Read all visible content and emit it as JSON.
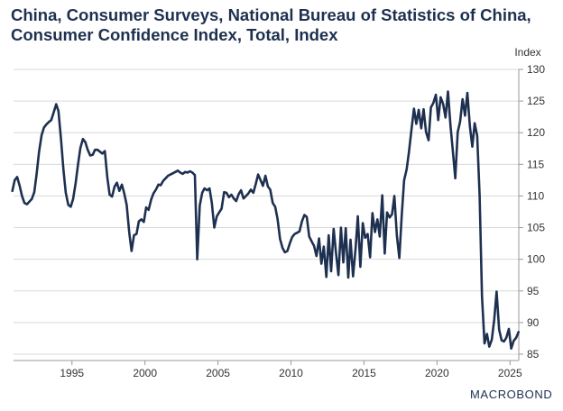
{
  "title_lines": [
    "China, Consumer Surveys, National Bureau of Statistics of China,",
    "Consumer Confidence Index, Total, Index"
  ],
  "logo": "MACROBOND",
  "colors": {
    "line": "#1e3050",
    "grid": "#d9d9d9",
    "text": "#333333"
  },
  "chart_data": {
    "type": "line",
    "title": "China, Consumer Surveys, National Bureau of Statistics of China, Consumer Confidence Index, Total, Index",
    "xlabel": "",
    "ylabel": "Index",
    "xlim": [
      1991.0,
      2025.6
    ],
    "ylim": [
      84,
      130
    ],
    "yticks": [
      85,
      90,
      95,
      100,
      105,
      110,
      115,
      120,
      125,
      130
    ],
    "xticks": [
      1995,
      2000,
      2005,
      2010,
      2015,
      2020,
      2025
    ],
    "y_axis_side": "right",
    "grid": "horizontal",
    "legend": "none",
    "series": [
      {
        "points": [
          [
            1990.92,
            110.8
          ],
          [
            1991.08,
            112.5
          ],
          [
            1991.25,
            113.0
          ],
          [
            1991.42,
            111.6
          ],
          [
            1991.58,
            110.0
          ],
          [
            1991.75,
            108.9
          ],
          [
            1991.92,
            108.7
          ],
          [
            1992.08,
            109.1
          ],
          [
            1992.25,
            109.5
          ],
          [
            1992.42,
            110.6
          ],
          [
            1992.58,
            113.5
          ],
          [
            1992.75,
            117.0
          ],
          [
            1992.92,
            119.6
          ],
          [
            1993.08,
            120.8
          ],
          [
            1993.25,
            121.3
          ],
          [
            1993.42,
            121.7
          ],
          [
            1993.58,
            122.0
          ],
          [
            1993.75,
            123.2
          ],
          [
            1993.92,
            124.5
          ],
          [
            1994.08,
            123.4
          ],
          [
            1994.25,
            119.0
          ],
          [
            1994.42,
            114.0
          ],
          [
            1994.58,
            110.5
          ],
          [
            1994.75,
            108.6
          ],
          [
            1994.92,
            108.3
          ],
          [
            1995.08,
            109.5
          ],
          [
            1995.25,
            112.0
          ],
          [
            1995.42,
            115.0
          ],
          [
            1995.58,
            117.6
          ],
          [
            1995.75,
            119.0
          ],
          [
            1995.92,
            118.5
          ],
          [
            1996.08,
            117.3
          ],
          [
            1996.25,
            116.4
          ],
          [
            1996.42,
            116.5
          ],
          [
            1996.58,
            117.3
          ],
          [
            1996.75,
            117.3
          ],
          [
            1996.92,
            117.0
          ],
          [
            1997.08,
            116.7
          ],
          [
            1997.25,
            117.1
          ],
          [
            1997.42,
            113.0
          ],
          [
            1997.58,
            110.2
          ],
          [
            1997.75,
            109.9
          ],
          [
            1997.92,
            111.5
          ],
          [
            1998.08,
            112.1
          ],
          [
            1998.25,
            110.8
          ],
          [
            1998.42,
            111.8
          ],
          [
            1998.58,
            110.4
          ],
          [
            1998.75,
            108.6
          ],
          [
            1998.92,
            104.3
          ],
          [
            1999.08,
            101.3
          ],
          [
            1999.25,
            103.8
          ],
          [
            1999.42,
            104.0
          ],
          [
            1999.58,
            106.0
          ],
          [
            1999.75,
            106.3
          ],
          [
            1999.92,
            105.9
          ],
          [
            2000.08,
            108.2
          ],
          [
            2000.25,
            107.8
          ],
          [
            2000.42,
            109.4
          ],
          [
            2000.58,
            110.4
          ],
          [
            2000.75,
            111.0
          ],
          [
            2000.92,
            111.8
          ],
          [
            2001.08,
            111.7
          ],
          [
            2001.25,
            112.4
          ],
          [
            2001.42,
            112.8
          ],
          [
            2001.58,
            113.2
          ],
          [
            2001.75,
            113.4
          ],
          [
            2001.92,
            113.6
          ],
          [
            2002.08,
            113.8
          ],
          [
            2002.25,
            114.0
          ],
          [
            2002.42,
            113.7
          ],
          [
            2002.58,
            113.5
          ],
          [
            2002.75,
            113.8
          ],
          [
            2002.92,
            113.7
          ],
          [
            2003.08,
            113.9
          ],
          [
            2003.25,
            113.7
          ],
          [
            2003.42,
            113.3
          ],
          [
            2003.58,
            100.0
          ],
          [
            2003.75,
            108.5
          ],
          [
            2003.92,
            110.5
          ],
          [
            2004.08,
            111.2
          ],
          [
            2004.25,
            110.9
          ],
          [
            2004.42,
            111.2
          ],
          [
            2004.58,
            108.9
          ],
          [
            2004.75,
            105.0
          ],
          [
            2004.92,
            106.8
          ],
          [
            2005.08,
            107.4
          ],
          [
            2005.25,
            108.0
          ],
          [
            2005.42,
            110.6
          ],
          [
            2005.58,
            110.5
          ],
          [
            2005.75,
            109.8
          ],
          [
            2005.92,
            110.2
          ],
          [
            2006.08,
            109.6
          ],
          [
            2006.25,
            109.2
          ],
          [
            2006.42,
            110.3
          ],
          [
            2006.58,
            110.9
          ],
          [
            2006.75,
            109.6
          ],
          [
            2006.92,
            110.0
          ],
          [
            2007.08,
            110.4
          ],
          [
            2007.25,
            111.0
          ],
          [
            2007.42,
            110.5
          ],
          [
            2007.58,
            111.8
          ],
          [
            2007.75,
            113.4
          ],
          [
            2007.92,
            112.5
          ],
          [
            2008.08,
            111.6
          ],
          [
            2008.25,
            113.2
          ],
          [
            2008.42,
            111.5
          ],
          [
            2008.58,
            111.0
          ],
          [
            2008.75,
            108.9
          ],
          [
            2008.92,
            108.3
          ],
          [
            2009.08,
            106.4
          ],
          [
            2009.25,
            103.2
          ],
          [
            2009.42,
            101.8
          ],
          [
            2009.58,
            101.1
          ],
          [
            2009.75,
            101.3
          ],
          [
            2009.92,
            102.5
          ],
          [
            2010.08,
            103.5
          ],
          [
            2010.25,
            104.0
          ],
          [
            2010.42,
            104.2
          ],
          [
            2010.58,
            104.4
          ],
          [
            2010.75,
            106.0
          ],
          [
            2010.92,
            107.0
          ],
          [
            2011.08,
            106.7
          ],
          [
            2011.25,
            103.6
          ],
          [
            2011.42,
            102.8
          ],
          [
            2011.58,
            102.1
          ],
          [
            2011.75,
            100.5
          ],
          [
            2011.92,
            103.3
          ],
          [
            2012.08,
            99.3
          ],
          [
            2012.25,
            102.0
          ],
          [
            2012.42,
            97.2
          ],
          [
            2012.58,
            103.8
          ],
          [
            2012.75,
            98.1
          ],
          [
            2012.92,
            104.8
          ],
          [
            2013.08,
            101.0
          ],
          [
            2013.25,
            97.5
          ],
          [
            2013.42,
            105.0
          ],
          [
            2013.58,
            99.5
          ],
          [
            2013.75,
            104.9
          ],
          [
            2013.92,
            97.1
          ],
          [
            2014.08,
            103.1
          ],
          [
            2014.25,
            97.3
          ],
          [
            2014.42,
            101.7
          ],
          [
            2014.58,
            106.8
          ],
          [
            2014.75,
            98.8
          ],
          [
            2014.92,
            105.7
          ],
          [
            2015.08,
            103.4
          ],
          [
            2015.25,
            104.0
          ],
          [
            2015.42,
            100.3
          ],
          [
            2015.58,
            107.3
          ],
          [
            2015.75,
            104.3
          ],
          [
            2015.92,
            106.3
          ],
          [
            2016.08,
            103.6
          ],
          [
            2016.25,
            110.1
          ],
          [
            2016.42,
            100.9
          ],
          [
            2016.58,
            107.4
          ],
          [
            2016.75,
            106.6
          ],
          [
            2016.92,
            107.1
          ],
          [
            2017.08,
            110.0
          ],
          [
            2017.25,
            103.7
          ],
          [
            2017.42,
            100.2
          ],
          [
            2017.58,
            106.8
          ],
          [
            2017.75,
            112.5
          ],
          [
            2017.92,
            114.2
          ],
          [
            2018.08,
            117.0
          ],
          [
            2018.25,
            120.4
          ],
          [
            2018.42,
            123.8
          ],
          [
            2018.58,
            121.4
          ],
          [
            2018.75,
            123.6
          ],
          [
            2018.92,
            120.7
          ],
          [
            2019.08,
            123.7
          ],
          [
            2019.25,
            120.1
          ],
          [
            2019.42,
            118.8
          ],
          [
            2019.58,
            124.0
          ],
          [
            2019.75,
            124.7
          ],
          [
            2019.92,
            126.0
          ],
          [
            2020.08,
            122.0
          ],
          [
            2020.25,
            125.6
          ],
          [
            2020.42,
            124.5
          ],
          [
            2020.58,
            122.4
          ],
          [
            2020.75,
            126.5
          ],
          [
            2020.92,
            121.1
          ],
          [
            2021.08,
            117.3
          ],
          [
            2021.25,
            112.8
          ],
          [
            2021.42,
            120.1
          ],
          [
            2021.58,
            121.7
          ],
          [
            2021.75,
            125.3
          ],
          [
            2021.92,
            122.7
          ],
          [
            2022.08,
            126.3
          ],
          [
            2022.25,
            121.0
          ],
          [
            2022.42,
            117.8
          ],
          [
            2022.58,
            121.5
          ],
          [
            2022.75,
            119.5
          ],
          [
            2022.92,
            110.0
          ],
          [
            2023.08,
            94.2
          ],
          [
            2023.25,
            86.7
          ],
          [
            2023.42,
            88.2
          ],
          [
            2023.58,
            86.2
          ],
          [
            2023.75,
            87.3
          ],
          [
            2023.92,
            90.5
          ],
          [
            2024.08,
            94.9
          ],
          [
            2024.25,
            88.9
          ],
          [
            2024.42,
            87.2
          ],
          [
            2024.58,
            87.0
          ],
          [
            2024.75,
            87.6
          ],
          [
            2024.92,
            89.0
          ],
          [
            2025.08,
            85.9
          ],
          [
            2025.25,
            87.1
          ],
          [
            2025.42,
            87.6
          ],
          [
            2025.58,
            88.5
          ]
        ]
      }
    ]
  }
}
